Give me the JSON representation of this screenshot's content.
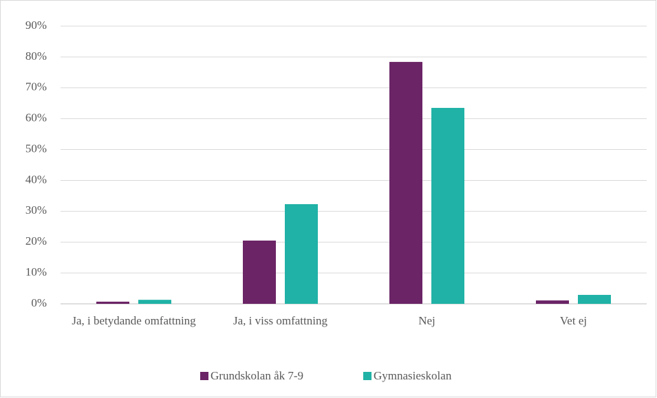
{
  "chart_data": {
    "type": "bar",
    "categories": [
      "Ja, i betydande omfattning",
      "Ja, i viss omfattning",
      "Nej",
      "Vet ej"
    ],
    "series": [
      {
        "name": "Grundskolan åk 7-9",
        "color": "#6b2466",
        "values": [
          0.7,
          20.5,
          78.4,
          1.1
        ]
      },
      {
        "name": "Gymnasieskolan",
        "color": "#20b2a6",
        "values": [
          1.3,
          32.3,
          63.5,
          2.9
        ]
      }
    ],
    "ylim": [
      0,
      90
    ],
    "yticks": [
      {
        "value": 0,
        "label": "0%"
      },
      {
        "value": 10,
        "label": "10%"
      },
      {
        "value": 20,
        "label": "20%"
      },
      {
        "value": 30,
        "label": "30%"
      },
      {
        "value": 40,
        "label": "40%"
      },
      {
        "value": 50,
        "label": "50%"
      },
      {
        "value": 60,
        "label": "60%"
      },
      {
        "value": 70,
        "label": "70%"
      },
      {
        "value": 80,
        "label": "80%"
      },
      {
        "value": 90,
        "label": "90%"
      }
    ],
    "grid": true,
    "legend": "bottom"
  }
}
